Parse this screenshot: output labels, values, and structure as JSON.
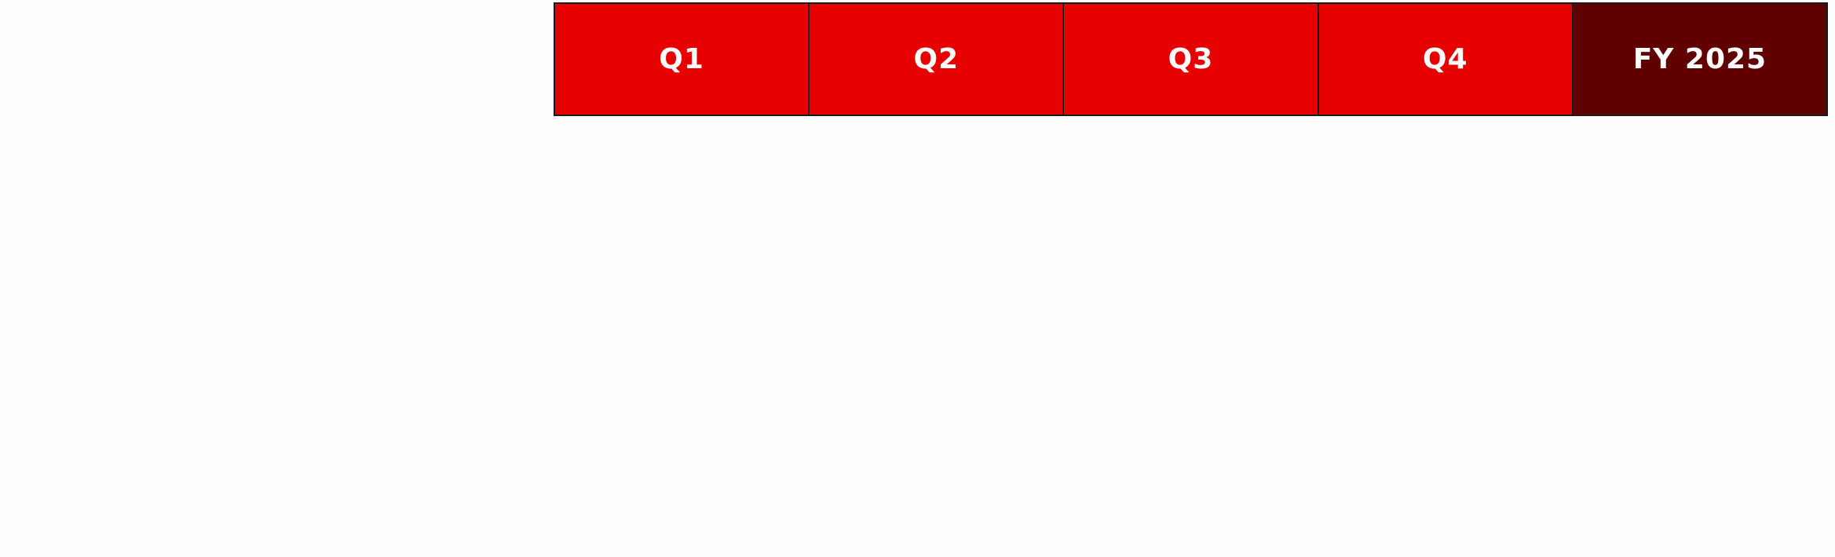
{
  "table": {
    "header": [
      "Q1",
      "Q2",
      "Q3",
      "Q4",
      "FY 2025"
    ]
  }
}
